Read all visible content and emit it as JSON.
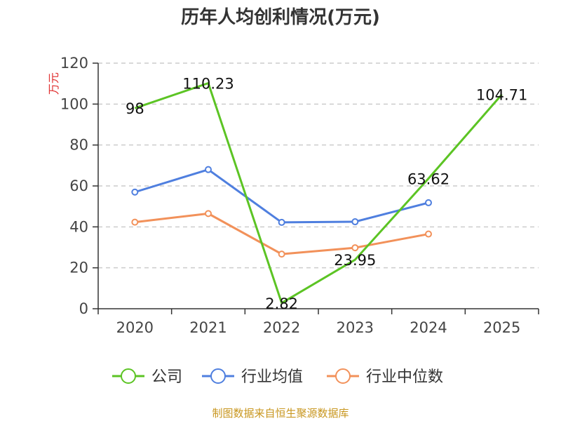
{
  "chart_data": {
    "type": "line",
    "title": "历年人均创利情况(万元)",
    "ylabel": "万元",
    "xlabel": "",
    "ylim": [
      0,
      120
    ],
    "yticks": [
      0,
      20,
      40,
      60,
      80,
      100,
      120
    ],
    "categories": [
      "2020",
      "2021",
      "2022",
      "2023",
      "2024",
      "2025"
    ],
    "grid": true,
    "legend_position": "bottom",
    "series": [
      {
        "name": "公司",
        "color": "#5cc424",
        "values": [
          98,
          110.23,
          2.82,
          23.95,
          63.62,
          104.71
        ],
        "labels": [
          "98",
          "110.23",
          "2.82",
          "23.95",
          "63.62",
          "104.71"
        ],
        "show_markers": false
      },
      {
        "name": "行业均值",
        "color": "#4f7fdf",
        "values": [
          57,
          68,
          42.2,
          42.5,
          51.8,
          null
        ],
        "show_markers": true
      },
      {
        "name": "行业中位数",
        "color": "#f2915a",
        "values": [
          42.3,
          46.5,
          26.7,
          29.8,
          36.5,
          null
        ],
        "show_markers": true
      }
    ]
  },
  "source": "制图数据来自恒生聚源数据库"
}
